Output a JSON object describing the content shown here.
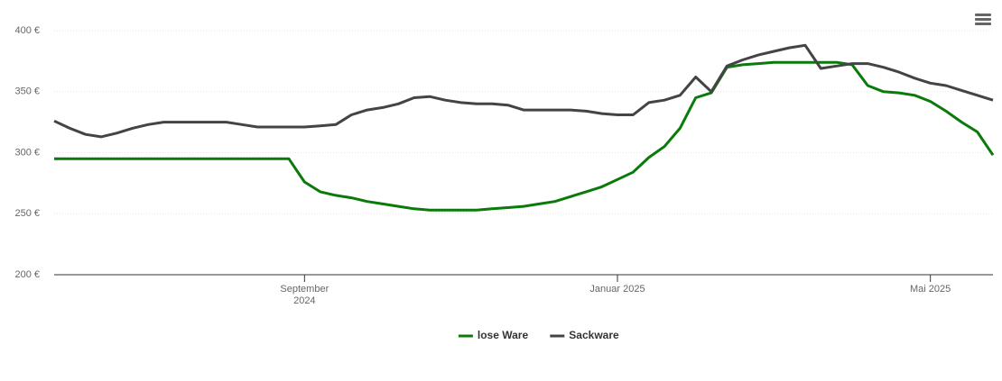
{
  "chart_data": {
    "type": "line",
    "categories": [
      null,
      null,
      null,
      null,
      null,
      null,
      null,
      null,
      null,
      null,
      null,
      null,
      null,
      null,
      null,
      null,
      "September 2024",
      null,
      null,
      null,
      null,
      null,
      null,
      null,
      null,
      null,
      null,
      null,
      null,
      null,
      null,
      null,
      null,
      null,
      null,
      null,
      "Januar 2025",
      null,
      null,
      null,
      null,
      null,
      null,
      null,
      null,
      null,
      null,
      null,
      null,
      null,
      null,
      null,
      null,
      null,
      null,
      null,
      "Mai 2025",
      null,
      null,
      null,
      null
    ],
    "series": [
      {
        "name": "lose Ware",
        "color": "#0a7a0a",
        "values": [
          295,
          295,
          295,
          295,
          295,
          295,
          295,
          295,
          295,
          295,
          295,
          295,
          295,
          295,
          295,
          295,
          276,
          268,
          265,
          263,
          260,
          258,
          256,
          254,
          253,
          253,
          253,
          253,
          254,
          255,
          256,
          258,
          260,
          264,
          268,
          272,
          278,
          284,
          296,
          305,
          320,
          345,
          349,
          370,
          372,
          373,
          374,
          374,
          374,
          374,
          374,
          372,
          355,
          350,
          349,
          347,
          342,
          334,
          325,
          317,
          298
        ]
      },
      {
        "name": "Sackware",
        "color": "#434348",
        "values": [
          326,
          320,
          315,
          313,
          316,
          320,
          323,
          325,
          325,
          325,
          325,
          325,
          323,
          321,
          321,
          321,
          321,
          322,
          323,
          331,
          335,
          337,
          340,
          345,
          346,
          343,
          341,
          340,
          340,
          339,
          335,
          335,
          335,
          335,
          334,
          332,
          331,
          331,
          341,
          343,
          347,
          362,
          350,
          371,
          376,
          380,
          383,
          386,
          388,
          369,
          371,
          373,
          373,
          370,
          366,
          361,
          357,
          355,
          351,
          347,
          343
        ]
      }
    ],
    "ylim": [
      200,
      400
    ],
    "yticks": [
      {
        "value": 200,
        "label": "200 €"
      },
      {
        "value": 250,
        "label": "250 €"
      },
      {
        "value": 300,
        "label": "300 €"
      },
      {
        "value": 350,
        "label": "350 €"
      },
      {
        "value": 400,
        "label": "400 €"
      }
    ],
    "grid": true,
    "legend": "bottom"
  }
}
